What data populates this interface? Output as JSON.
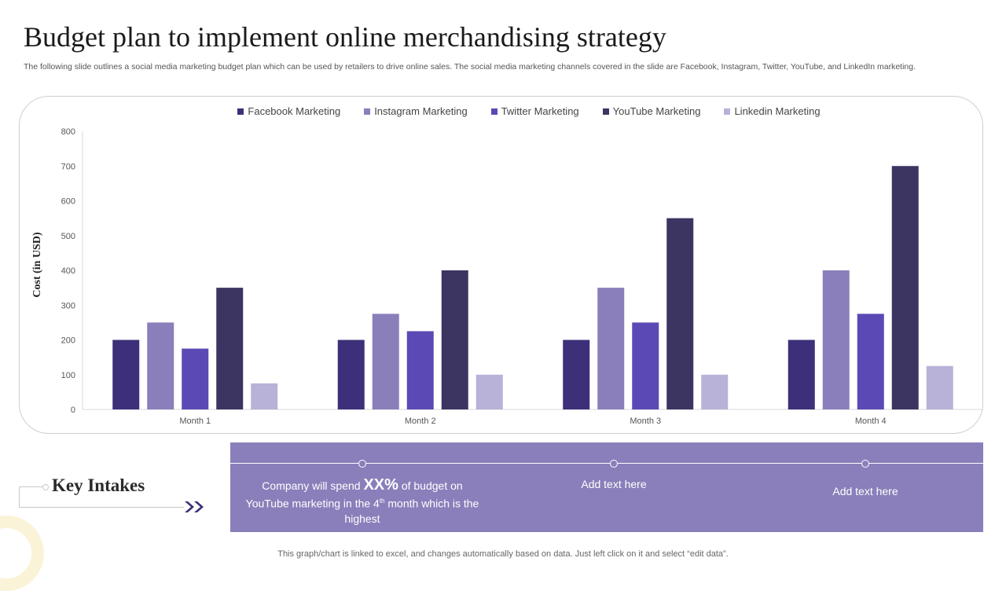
{
  "header": {
    "title": "Budget plan to implement online merchandising strategy",
    "subtitle": "The following slide outlines a social media marketing budget plan which can be used by retailers to drive online sales. The social media marketing channels covered in the slide are Facebook, Instagram, Twitter, YouTube, and LinkedIn marketing."
  },
  "chart_data": {
    "type": "bar",
    "title": "",
    "xlabel": "",
    "ylabel": "Cost (in USD)",
    "ylim": [
      0,
      800
    ],
    "yticks": [
      0,
      100,
      200,
      300,
      400,
      500,
      600,
      700,
      800
    ],
    "categories": [
      "Month 1",
      "Month 2",
      "Month 3",
      "Month 4"
    ],
    "legend_position": "top-center",
    "grid": false,
    "series": [
      {
        "name": "Facebook Marketing",
        "color": "#3e2f7a",
        "values": [
          200,
          200,
          200,
          200
        ]
      },
      {
        "name": "Instagram Marketing",
        "color": "#8a7fba",
        "values": [
          250,
          275,
          350,
          400
        ]
      },
      {
        "name": "Twitter Marketing",
        "color": "#5b49b5",
        "values": [
          175,
          225,
          250,
          275
        ]
      },
      {
        "name": "YouTube Marketing",
        "color": "#3c3461",
        "values": [
          350,
          400,
          550,
          700
        ]
      },
      {
        "name": "Linkedin Marketing",
        "color": "#b8b1d8",
        "values": [
          75,
          100,
          100,
          125
        ]
      }
    ]
  },
  "key_intakes": {
    "title": "Key Intakes",
    "items": [
      {
        "pre": "Company will spend ",
        "highlight": "XX%",
        "mid": " of budget on YouTube marketing in the 4",
        "sup": "th",
        "post": " month which is the highest"
      },
      {
        "text": "Add text here"
      },
      {
        "text": "Add text here"
      }
    ]
  },
  "footer": {
    "note": "This graph/chart is linked to excel, and changes automatically based on data. Just left click on it and select “edit data”."
  },
  "colors": {
    "accent": "#8a7fba",
    "dark_purple": "#3e2f7a",
    "arrows": "#3e2f7a"
  }
}
